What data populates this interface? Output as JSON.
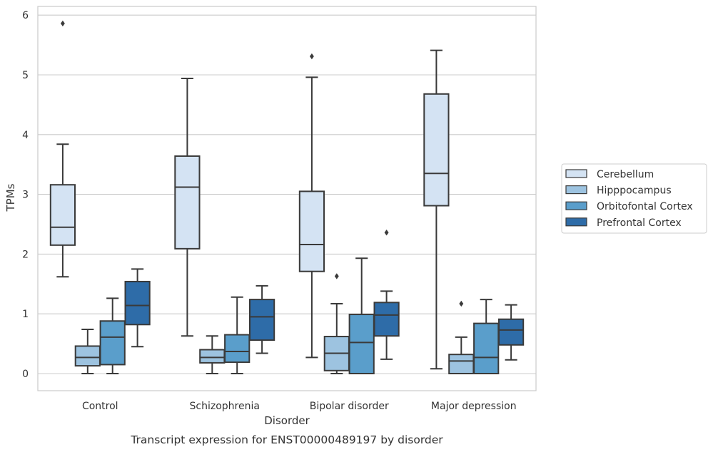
{
  "chart_data": {
    "type": "box",
    "caption": "Transcript expression for ENST00000489197 by disorder",
    "xlabel": "Disorder",
    "ylabel": "TPMs",
    "ylim": [
      -0.28,
      6.15
    ],
    "yticks": [
      0,
      1,
      2,
      3,
      4,
      5,
      6
    ],
    "grid": "horizontal",
    "legend_position": "right",
    "categories": [
      "Control",
      "Schizophrenia",
      "Bipolar disorder",
      "Major depression"
    ],
    "series": [
      {
        "name": "Cerebellum",
        "color": "#d4e3f3",
        "boxes": [
          {
            "whisker_low": 1.62,
            "q1": 2.15,
            "median": 2.45,
            "q3": 3.16,
            "whisker_high": 3.84,
            "outliers": [
              5.86
            ]
          },
          {
            "whisker_low": 0.63,
            "q1": 2.09,
            "median": 3.12,
            "q3": 3.64,
            "whisker_high": 4.94,
            "outliers": []
          },
          {
            "whisker_low": 0.27,
            "q1": 1.71,
            "median": 2.16,
            "q3": 3.05,
            "whisker_high": 4.96,
            "outliers": [
              5.31
            ]
          },
          {
            "whisker_low": 0.08,
            "q1": 2.81,
            "median": 3.35,
            "q3": 4.68,
            "whisker_high": 5.41,
            "outliers": []
          }
        ]
      },
      {
        "name": "Hipppocampus",
        "color": "#9dc3e0",
        "boxes": [
          {
            "whisker_low": 0.0,
            "q1": 0.13,
            "median": 0.27,
            "q3": 0.46,
            "whisker_high": 0.74,
            "outliers": []
          },
          {
            "whisker_low": 0.0,
            "q1": 0.18,
            "median": 0.27,
            "q3": 0.4,
            "whisker_high": 0.63,
            "outliers": []
          },
          {
            "whisker_low": 0.0,
            "q1": 0.05,
            "median": 0.34,
            "q3": 0.62,
            "whisker_high": 1.17,
            "outliers": [
              1.63
            ]
          },
          {
            "whisker_low": 0.0,
            "q1": 0.0,
            "median": 0.21,
            "q3": 0.32,
            "whisker_high": 0.61,
            "outliers": [
              1.17
            ]
          }
        ]
      },
      {
        "name": "Orbitofontal Cortex",
        "color": "#5a9ecb",
        "boxes": [
          {
            "whisker_low": 0.0,
            "q1": 0.15,
            "median": 0.61,
            "q3": 0.88,
            "whisker_high": 1.26,
            "outliers": []
          },
          {
            "whisker_low": 0.0,
            "q1": 0.19,
            "median": 0.37,
            "q3": 0.65,
            "whisker_high": 1.28,
            "outliers": []
          },
          {
            "whisker_low": 0.0,
            "q1": 0.0,
            "median": 0.52,
            "q3": 0.99,
            "whisker_high": 1.93,
            "outliers": []
          },
          {
            "whisker_low": 0.0,
            "q1": 0.0,
            "median": 0.27,
            "q3": 0.84,
            "whisker_high": 1.24,
            "outliers": []
          }
        ]
      },
      {
        "name": "Prefrontal Cortex",
        "color": "#2e6ca8",
        "boxes": [
          {
            "whisker_low": 0.45,
            "q1": 0.82,
            "median": 1.14,
            "q3": 1.54,
            "whisker_high": 1.75,
            "outliers": []
          },
          {
            "whisker_low": 0.34,
            "q1": 0.56,
            "median": 0.95,
            "q3": 1.24,
            "whisker_high": 1.47,
            "outliers": []
          },
          {
            "whisker_low": 0.24,
            "q1": 0.63,
            "median": 0.98,
            "q3": 1.19,
            "whisker_high": 1.38,
            "outliers": [
              2.36
            ]
          },
          {
            "whisker_low": 0.23,
            "q1": 0.48,
            "median": 0.73,
            "q3": 0.91,
            "whisker_high": 1.15,
            "outliers": []
          }
        ]
      }
    ]
  }
}
